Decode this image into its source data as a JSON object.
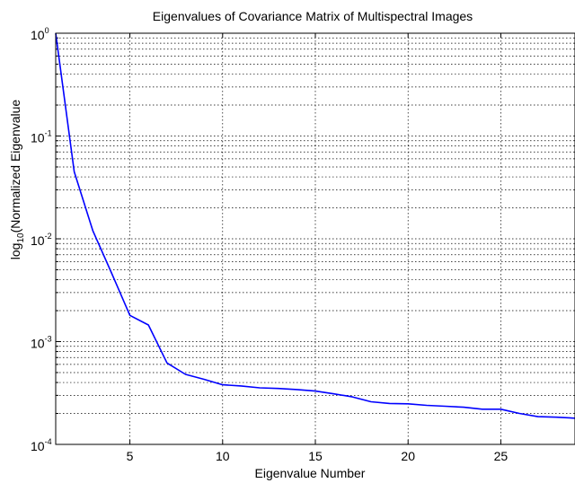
{
  "chart_data": {
    "type": "line",
    "title": "Eigenvalues of Covariance Matrix of Multispectral Images",
    "xlabel": "Eigenvalue Number",
    "ylabel_parts": [
      "log",
      "10",
      "(Normalized Eigenvalue"
    ],
    "yscale": "log",
    "xlim": [
      1,
      29
    ],
    "ylim": [
      0.0001,
      1
    ],
    "grid": true,
    "x_ticks": [
      5,
      10,
      15,
      20,
      25
    ],
    "x_tick_labels": [
      "5",
      "10",
      "15",
      "20",
      "25"
    ],
    "y_ticks": [
      {
        "value": 1,
        "base": "10",
        "exp": "0"
      },
      {
        "value": 0.1,
        "base": "10",
        "exp": "-1"
      },
      {
        "value": 0.01,
        "base": "10",
        "exp": "-2"
      },
      {
        "value": 0.001,
        "base": "10",
        "exp": "-3"
      },
      {
        "value": 0.0001,
        "base": "10",
        "exp": "-4"
      }
    ],
    "series": [
      {
        "color": "#0000ff",
        "x": [
          1,
          2,
          3,
          4,
          5,
          6,
          7,
          8,
          9,
          10,
          11,
          12,
          13,
          14,
          15,
          16,
          17,
          18,
          19,
          20,
          21,
          22,
          23,
          24,
          25,
          26,
          27,
          28,
          29
        ],
        "values": [
          1.0,
          0.045,
          0.012,
          0.0047,
          0.0018,
          0.00145,
          0.00062,
          0.00048,
          0.00043,
          0.00038,
          0.00037,
          0.000355,
          0.00035,
          0.000342,
          0.00033,
          0.00031,
          0.00029,
          0.00026,
          0.00025,
          0.000248,
          0.00024,
          0.000235,
          0.00023,
          0.00022,
          0.00022,
          0.0002,
          0.000186,
          0.000184,
          0.00018
        ]
      }
    ]
  }
}
